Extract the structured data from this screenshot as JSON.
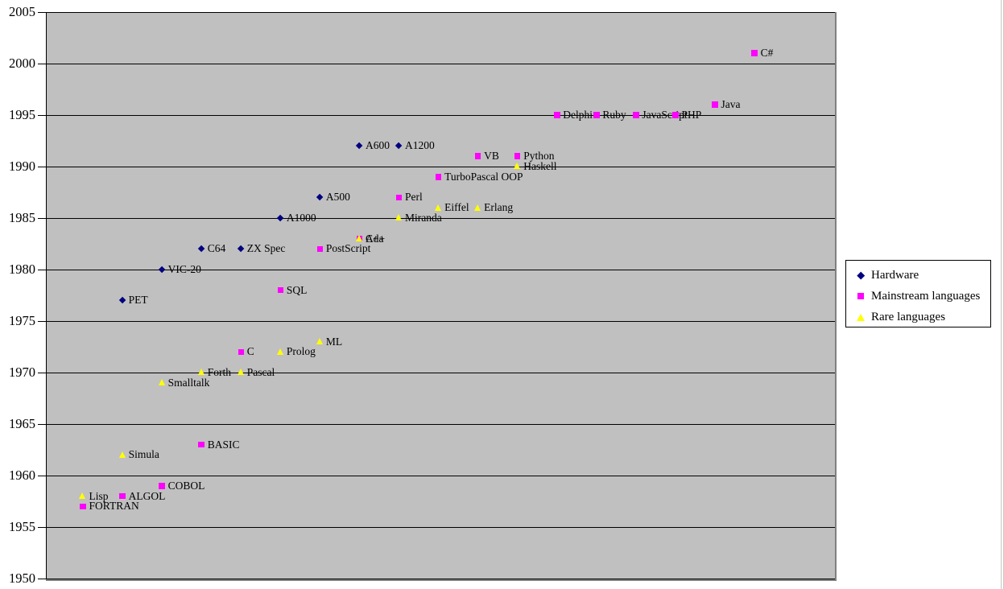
{
  "chart_data": {
    "type": "scatter",
    "title": "",
    "xlabel": "",
    "ylabel": "",
    "grid": "horizontal",
    "plot_bg_color": "#C0C0C0",
    "gridline_color": "#000000",
    "y_axis": {
      "min": 1950,
      "max": 2005,
      "step": 5,
      "tick_labels": [
        "2005",
        "2000",
        "1995",
        "1990",
        "1985",
        "1980",
        "1975",
        "1970",
        "1965",
        "1960",
        "1955",
        "1950"
      ]
    },
    "x_axis": {
      "visible": false,
      "note": "hidden index axis; each point sits at its series sequence column"
    },
    "legend": {
      "position": "right",
      "items": [
        {
          "label": "Hardware",
          "marker": "diamond",
          "color": "#000080"
        },
        {
          "label": "Mainstream languages",
          "marker": "square",
          "color": "#FF00FF"
        },
        {
          "label": "Rare languages",
          "marker": "triangle",
          "color": "#FFFF00"
        }
      ]
    },
    "series": [
      {
        "name": "Hardware",
        "marker": "diamond",
        "color": "#000080",
        "points": [
          {
            "label": "PET",
            "x": 2,
            "year": 1977
          },
          {
            "label": "VIC-20",
            "x": 3,
            "year": 1980
          },
          {
            "label": "C64",
            "x": 4,
            "year": 1982
          },
          {
            "label": "ZX Spec",
            "x": 5,
            "year": 1982
          },
          {
            "label": "A1000",
            "x": 6,
            "year": 1985
          },
          {
            "label": "A500",
            "x": 7,
            "year": 1987
          },
          {
            "label": "A600",
            "x": 8,
            "year": 1992
          },
          {
            "label": "A1200",
            "x": 9,
            "year": 1992
          }
        ]
      },
      {
        "name": "Mainstream languages",
        "marker": "square",
        "color": "#FF00FF",
        "points": [
          {
            "label": "FORTRAN",
            "x": 1,
            "year": 1957
          },
          {
            "label": "ALGOL",
            "x": 2,
            "year": 1958
          },
          {
            "label": "COBOL",
            "x": 3,
            "year": 1959
          },
          {
            "label": "BASIC",
            "x": 4,
            "year": 1963
          },
          {
            "label": "C",
            "x": 5,
            "year": 1972
          },
          {
            "label": "SQL",
            "x": 6,
            "year": 1978
          },
          {
            "label": "PostScript",
            "x": 7,
            "year": 1982
          },
          {
            "label": "C++",
            "x": 8,
            "year": 1983
          },
          {
            "label": "Perl",
            "x": 9,
            "year": 1987
          },
          {
            "label": "TurboPascal OOP",
            "x": 10,
            "year": 1989
          },
          {
            "label": "VB",
            "x": 11,
            "year": 1991
          },
          {
            "label": "Python",
            "x": 12,
            "year": 1991
          },
          {
            "label": "Delphi",
            "x": 13,
            "year": 1995
          },
          {
            "label": "Ruby",
            "x": 14,
            "year": 1995
          },
          {
            "label": "JavaScript",
            "x": 15,
            "year": 1995
          },
          {
            "label": "PHP",
            "x": 16,
            "year": 1995
          },
          {
            "label": "Java",
            "x": 17,
            "year": 1996
          },
          {
            "label": "C#",
            "x": 18,
            "year": 2001
          }
        ]
      },
      {
        "name": "Rare languages",
        "marker": "triangle",
        "color": "#FFFF00",
        "points": [
          {
            "label": "Lisp",
            "x": 1,
            "year": 1958
          },
          {
            "label": "Simula",
            "x": 2,
            "year": 1962
          },
          {
            "label": "Smalltalk",
            "x": 3,
            "year": 1969
          },
          {
            "label": "Forth",
            "x": 4,
            "year": 1970
          },
          {
            "label": "Pascal",
            "x": 5,
            "year": 1970
          },
          {
            "label": "Prolog",
            "x": 6,
            "year": 1972
          },
          {
            "label": "ML",
            "x": 7,
            "year": 1973
          },
          {
            "label": "Ada",
            "x": 8,
            "year": 1983
          },
          {
            "label": "Miranda",
            "x": 9,
            "year": 1985
          },
          {
            "label": "Eiffel",
            "x": 10,
            "year": 1986
          },
          {
            "label": "Erlang",
            "x": 11,
            "year": 1986
          },
          {
            "label": "Haskell",
            "x": 12,
            "year": 1990
          }
        ]
      }
    ]
  },
  "window": {
    "edge_line_color": "#c9c5bd"
  }
}
